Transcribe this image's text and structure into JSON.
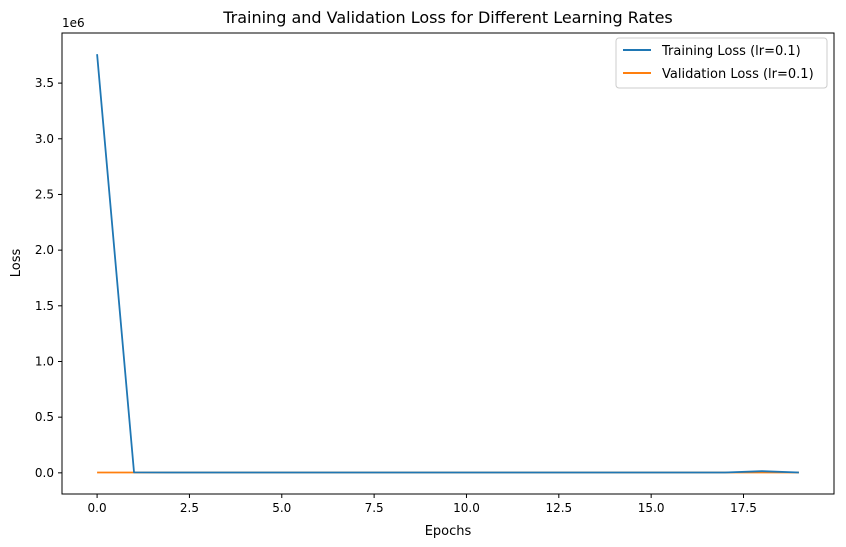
{
  "chart_data": {
    "type": "line",
    "title": "Training and Validation Loss for Different Learning Rates",
    "xlabel": "Epochs",
    "ylabel": "Loss",
    "y_offset_label": "1e6",
    "xlim": [
      -0.95,
      19.95
    ],
    "ylim": [
      -190000,
      3950000
    ],
    "x_ticks": [
      0.0,
      2.5,
      5.0,
      7.5,
      10.0,
      12.5,
      15.0,
      17.5
    ],
    "x_tick_labels": [
      "0.0",
      "2.5",
      "5.0",
      "7.5",
      "10.0",
      "12.5",
      "15.0",
      "17.5"
    ],
    "y_ticks": [
      0,
      500000,
      1000000,
      1500000,
      2000000,
      2500000,
      3000000,
      3500000
    ],
    "y_tick_labels": [
      "0.0",
      "0.5",
      "1.0",
      "1.5",
      "2.0",
      "2.5",
      "3.0",
      "3.5"
    ],
    "grid": false,
    "legend_position": "top-right",
    "x": [
      0,
      1,
      2,
      3,
      4,
      5,
      6,
      7,
      8,
      9,
      10,
      11,
      12,
      13,
      14,
      15,
      16,
      17,
      18,
      19
    ],
    "series": [
      {
        "name": "Training Loss (lr=0.1)",
        "color": "#1f77b4",
        "values": [
          3760000,
          4000,
          3000,
          3000,
          3000,
          3000,
          3000,
          3000,
          3000,
          3000,
          3000,
          3000,
          3000,
          3000,
          3000,
          3000,
          3000,
          3000,
          15000,
          3000
        ]
      },
      {
        "name": "Validation Loss (lr=0.1)",
        "color": "#ff7f0e",
        "values": [
          3000,
          3000,
          3000,
          3000,
          3000,
          3000,
          3000,
          3000,
          3000,
          3000,
          3000,
          3000,
          3000,
          3000,
          3000,
          3000,
          3000,
          3000,
          3000,
          3000
        ]
      }
    ]
  }
}
